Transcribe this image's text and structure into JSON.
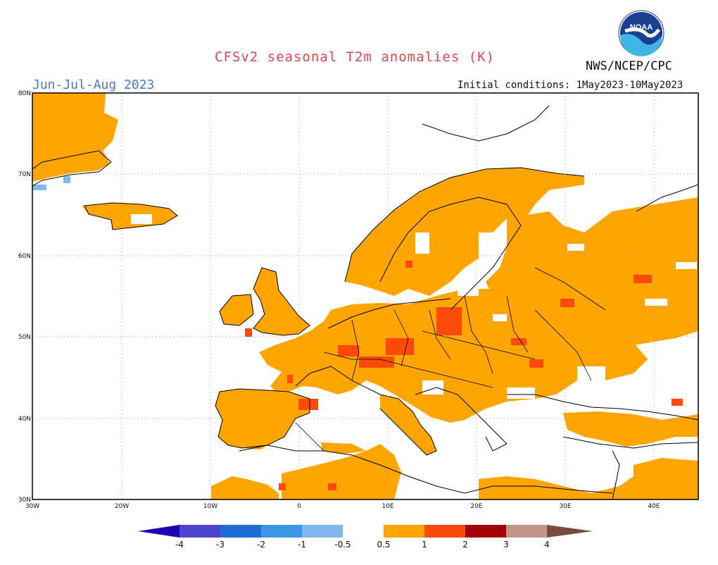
{
  "header": {
    "title": "CFSv2 seasonal T2m anomalies (K)",
    "season": "Jun-Jul-Aug 2023",
    "agency": "NWS/NCEP/CPC",
    "initial_conditions": "Initial conditions: 1May2023-10May2023",
    "logo_text": "NOAA"
  },
  "map": {
    "lon_range": [
      -30,
      45
    ],
    "lat_range": [
      30,
      80
    ],
    "lat_ticks": [
      {
        "value": 30,
        "label": "30N"
      },
      {
        "value": 40,
        "label": "40N"
      },
      {
        "value": 50,
        "label": "50N"
      },
      {
        "value": 60,
        "label": "60N"
      },
      {
        "value": 70,
        "label": "70N"
      },
      {
        "value": 80,
        "label": "80N"
      }
    ],
    "lon_ticks": [
      {
        "value": -30,
        "label": "30W"
      },
      {
        "value": -20,
        "label": "20W"
      },
      {
        "value": -10,
        "label": "10W"
      },
      {
        "value": 0,
        "label": "0"
      },
      {
        "value": 10,
        "label": "10E"
      },
      {
        "value": 20,
        "label": "20E"
      },
      {
        "value": 30,
        "label": "30E"
      },
      {
        "value": 40,
        "label": "40E"
      }
    ],
    "anomaly_colors": {
      "0.5-1": "#fea500",
      "1-2": "#fd4a0b",
      "-1--0.5": "#80b8ed"
    }
  },
  "colorbar": {
    "colors": [
      "#1f00b0",
      "#4b43d1",
      "#1f6dd0",
      "#3d95e5",
      "#80b8ed",
      "#ffffff",
      "#fea500",
      "#fd4a0b",
      "#a50007",
      "#c0958c",
      "#7a4a40"
    ],
    "labels": [
      "-4",
      "-3",
      "-2",
      "-1",
      "-0.5",
      "0.5",
      "1",
      "2",
      "3",
      "4"
    ]
  }
}
